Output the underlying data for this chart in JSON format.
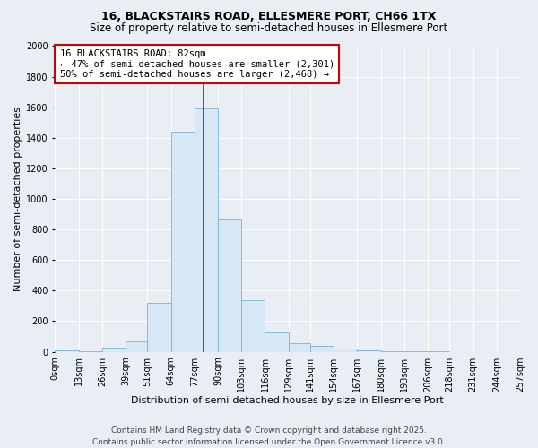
{
  "title": "16, BLACKSTAIRS ROAD, ELLESMERE PORT, CH66 1TX",
  "subtitle": "Size of property relative to semi-detached houses in Ellesmere Port",
  "xlabel": "Distribution of semi-detached houses by size in Ellesmere Port",
  "ylabel": "Number of semi-detached properties",
  "bin_labels": [
    "0sqm",
    "13sqm",
    "26sqm",
    "39sqm",
    "51sqm",
    "64sqm",
    "77sqm",
    "90sqm",
    "103sqm",
    "116sqm",
    "129sqm",
    "141sqm",
    "154sqm",
    "167sqm",
    "180sqm",
    "193sqm",
    "206sqm",
    "218sqm",
    "231sqm",
    "244sqm",
    "257sqm"
  ],
  "bin_edges": [
    0,
    13,
    26,
    39,
    51,
    64,
    77,
    90,
    103,
    116,
    129,
    141,
    154,
    167,
    180,
    193,
    206,
    218,
    231,
    244,
    257
  ],
  "bar_heights": [
    10,
    5,
    28,
    70,
    320,
    1440,
    1590,
    870,
    335,
    125,
    55,
    40,
    22,
    10,
    5,
    2,
    1,
    0,
    0,
    0
  ],
  "bar_color": "#d6e8f5",
  "bar_edge_color": "#7ab3d3",
  "property_value": 82,
  "vline_color": "#cc0000",
  "annotation_title": "16 BLACKSTAIRS ROAD: 82sqm",
  "annotation_line1": "← 47% of semi-detached houses are smaller (2,301)",
  "annotation_line2": "50% of semi-detached houses are larger (2,468) →",
  "annotation_box_color": "#ffffff",
  "annotation_box_edge_color": "#cc0000",
  "ylim": [
    0,
    2000
  ],
  "yticks": [
    0,
    200,
    400,
    600,
    800,
    1000,
    1200,
    1400,
    1600,
    1800,
    2000
  ],
  "bg_color": "#e8eef4",
  "footer_line1": "Contains HM Land Registry data © Crown copyright and database right 2025.",
  "footer_line2": "Contains public sector information licensed under the Open Government Licence v3.0.",
  "title_fontsize": 9,
  "subtitle_fontsize": 8.5,
  "axis_label_fontsize": 8,
  "tick_fontsize": 7,
  "annotation_fontsize": 7.5,
  "footer_fontsize": 6.5
}
